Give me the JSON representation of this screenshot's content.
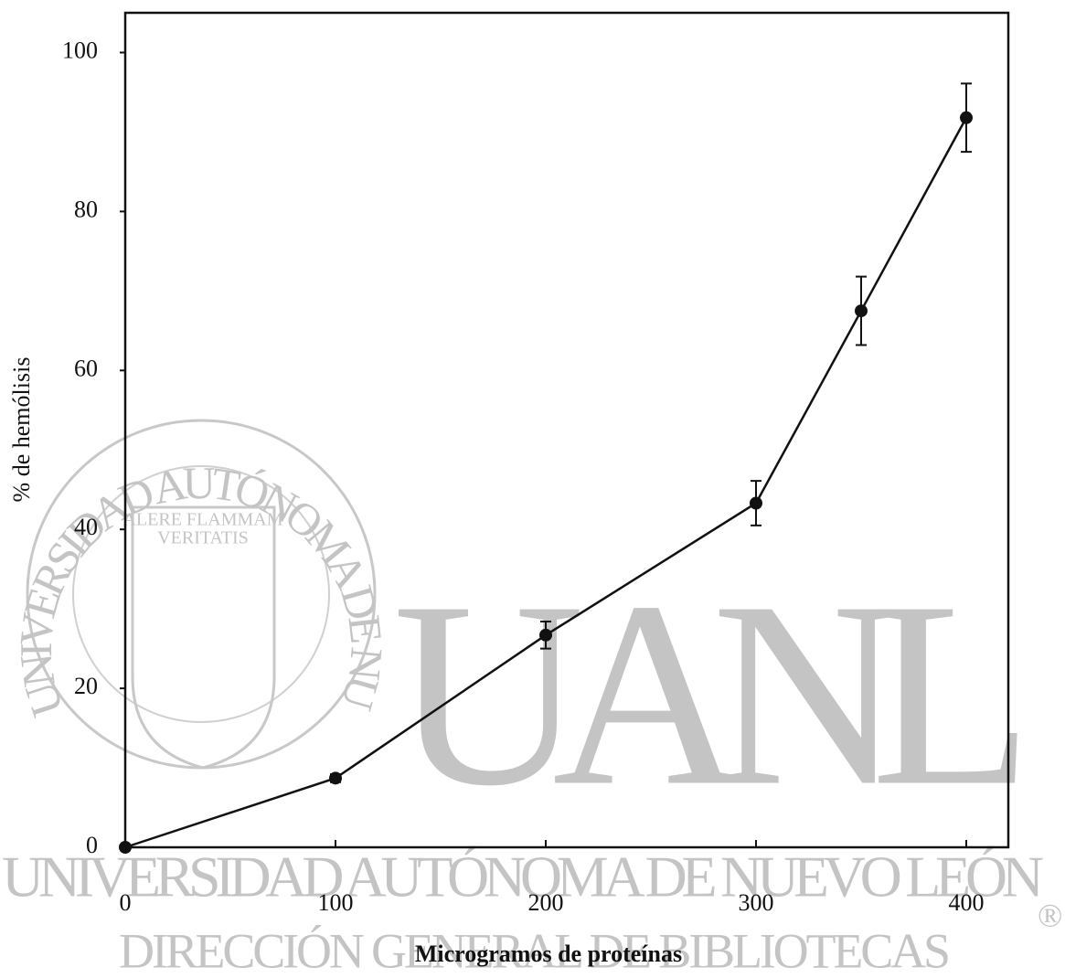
{
  "chart_data": {
    "type": "line",
    "x_label": "Microgramos de proteínas",
    "y_label": "% de hemólisis",
    "x": [
      0,
      100,
      200,
      300,
      350,
      400
    ],
    "series": [
      {
        "color": "#111111",
        "values": [
          0,
          8.7,
          26.7,
          43.3,
          67.5,
          91.8
        ],
        "errors": [
          0,
          0.5,
          1.7,
          2.8,
          4.3,
          4.3
        ]
      }
    ],
    "xlim": [
      0,
      420
    ],
    "xticks": [
      0,
      100,
      200,
      300,
      400
    ],
    "ylim": [
      0,
      105
    ],
    "yticks": [
      0,
      20,
      40,
      60,
      80,
      100
    ]
  },
  "watermark": {
    "logo": "UANL",
    "line1": "UNIVERSIDAD AUTÓNOMA DE NUEVO LEÓN",
    "line2": "DIRECCIÓN GENERAL DE BIBLIOTECAS",
    "mark": "®",
    "seal_ring": "UNIVERSIDAD AUTÓNOMA DE NUEVO LEÓN",
    "seal_motto1": "ALERE FLAMMAM",
    "seal_motto2": "VERITATIS"
  }
}
